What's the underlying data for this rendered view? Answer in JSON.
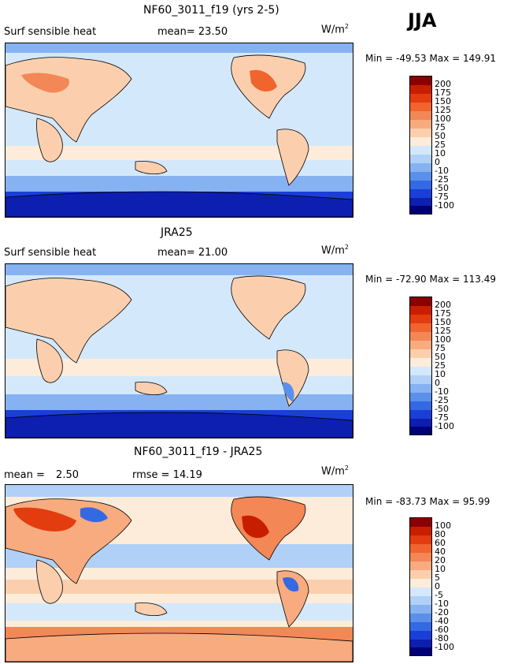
{
  "season": "JJA",
  "panels": [
    {
      "title": "NF60_3011_f19 (yrs 2-5)",
      "variable": "Surf sensible heat",
      "stat1_label": "mean=",
      "stat1_value": "23.50",
      "units_base": "W/m",
      "units_exp": "2",
      "min_label": "Min =",
      "min_value": "-49.53",
      "max_label": "Max =",
      "max_value": "149.91"
    },
    {
      "title": "JRA25",
      "variable": "Surf sensible heat",
      "stat1_label": "mean=",
      "stat1_value": "21.00",
      "units_base": "W/m",
      "units_exp": "2",
      "min_label": "Min =",
      "min_value": "-72.90",
      "max_label": "Max =",
      "max_value": "113.49"
    },
    {
      "title": "NF60_3011_f19 - JRA25",
      "stat1_label": "mean =",
      "stat1_value": "2.50",
      "stat2_label": "rmse =",
      "stat2_value": "14.19",
      "units_base": "W/m",
      "units_exp": "2",
      "min_label": "Min =",
      "min_value": "-83.73",
      "max_label": "Max =",
      "max_value": "95.99"
    }
  ],
  "chart_data": [
    {
      "type": "heatmap",
      "title": "NF60_3011_f19 (yrs 2-5)",
      "variable": "Surf sensible heat",
      "season": "JJA",
      "units": "W/m2",
      "mean": 23.5,
      "min": -49.53,
      "max": 149.91,
      "contour_levels": [
        -100,
        -75,
        -50,
        -25,
        -10,
        0,
        10,
        25,
        50,
        75,
        100,
        125,
        150,
        175,
        200
      ],
      "colorbar_labels": [
        "200",
        "175",
        "150",
        "125",
        "100",
        "75",
        "50",
        "25",
        "10",
        "0",
        "-10",
        "-25",
        "-50",
        "-75",
        "-100"
      ]
    },
    {
      "type": "heatmap",
      "title": "JRA25",
      "variable": "Surf sensible heat",
      "season": "JJA",
      "units": "W/m2",
      "mean": 21.0,
      "min": -72.9,
      "max": 113.49,
      "contour_levels": [
        -100,
        -75,
        -50,
        -25,
        -10,
        0,
        10,
        25,
        50,
        75,
        100,
        125,
        150,
        175,
        200
      ],
      "colorbar_labels": [
        "200",
        "175",
        "150",
        "125",
        "100",
        "75",
        "50",
        "25",
        "10",
        "0",
        "-10",
        "-25",
        "-50",
        "-75",
        "-100"
      ]
    },
    {
      "type": "heatmap",
      "title": "NF60_3011_f19 - JRA25",
      "season": "JJA",
      "units": "W/m2",
      "mean": 2.5,
      "rmse": 14.19,
      "min": -83.73,
      "max": 95.99,
      "contour_levels": [
        -100,
        -80,
        -60,
        -40,
        -20,
        -10,
        -5,
        0,
        5,
        10,
        20,
        40,
        60,
        80,
        100
      ],
      "colorbar_labels": [
        "100",
        "80",
        "60",
        "40",
        "20",
        "10",
        "5",
        "0",
        "-5",
        "-10",
        "-20",
        "-40",
        "-60",
        "-80",
        "-100"
      ]
    }
  ],
  "colors": {
    "colorbar": [
      "#8b0000",
      "#c81e00",
      "#e23c0f",
      "#f0642d",
      "#f38755",
      "#f7ab7f",
      "#fbcfae",
      "#fdecd9",
      "#d4e8fb",
      "#b0d0f7",
      "#86b2f1",
      "#5a90ea",
      "#3469e4",
      "#1a3fd6",
      "#0c1fb0",
      "#000078"
    ]
  }
}
